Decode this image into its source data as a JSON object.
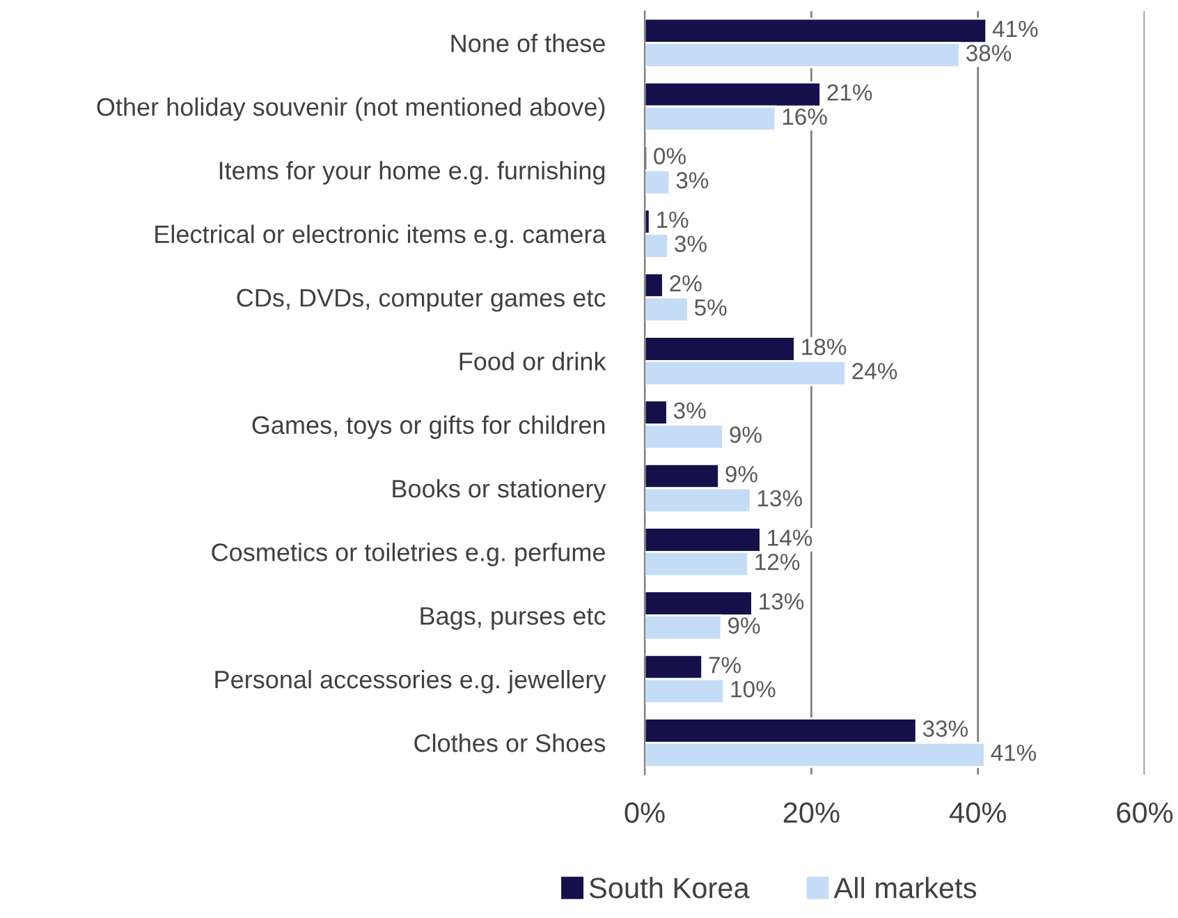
{
  "chart_data": {
    "type": "bar",
    "orientation": "horizontal",
    "categories": [
      "None of these",
      "Other holiday souvenir (not mentioned above)",
      "Items for your home e.g. furnishing",
      "Electrical or electronic items e.g. camera",
      "CDs, DVDs, computer games etc",
      "Food or drink",
      "Games, toys or gifts for children",
      "Books or stationery",
      "Cosmetics or toiletries e.g. perfume",
      "Bags, purses etc",
      "Personal accessories e.g. jewellery",
      "Clothes or Shoes"
    ],
    "series": [
      {
        "name": "South Korea",
        "color": "#14114a",
        "values": [
          41.0,
          21.1,
          0.3,
          0.6,
          2.2,
          18.0,
          2.7,
          8.9,
          13.9,
          12.9,
          6.9,
          32.6
        ],
        "value_labels": [
          "41%",
          "21%",
          "0%",
          "1%",
          "2%",
          "18%",
          "3%",
          "9%",
          "14%",
          "13%",
          "7%",
          "33%"
        ]
      },
      {
        "name": "All markets",
        "color": "#c5dcf6",
        "values": [
          37.8,
          15.7,
          3.0,
          2.8,
          5.2,
          24.1,
          9.4,
          12.7,
          12.4,
          9.2,
          9.5,
          40.8
        ],
        "value_labels": [
          "38%",
          "16%",
          "3%",
          "3%",
          "5%",
          "24%",
          "9%",
          "13%",
          "12%",
          "9%",
          "10%",
          "41%"
        ]
      }
    ],
    "xlim": [
      0,
      60
    ],
    "xticks": [
      {
        "value": 0,
        "label": "0%"
      },
      {
        "value": 20,
        "label": "20%"
      },
      {
        "value": 40,
        "label": "40%"
      },
      {
        "value": 60,
        "label": "60%"
      }
    ],
    "grid": "x",
    "legend": "bottom"
  }
}
